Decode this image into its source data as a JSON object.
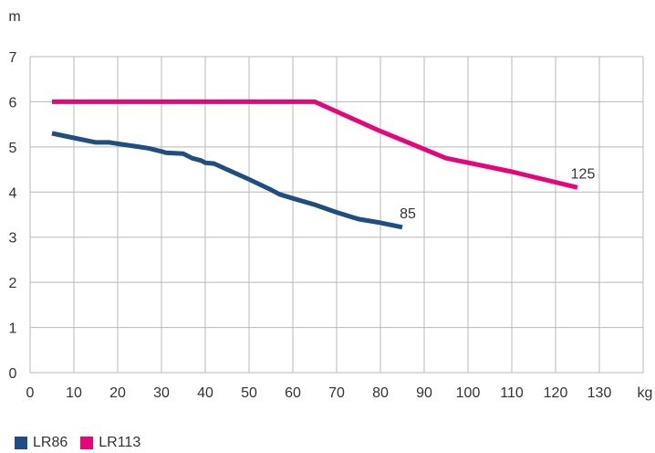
{
  "chart_data": {
    "type": "line",
    "xlabel": "kg",
    "ylabel": "m",
    "xlim": [
      0,
      140
    ],
    "ylim": [
      0,
      7
    ],
    "x_ticks": [
      "0",
      "10",
      "20",
      "30",
      "40",
      "50",
      "60",
      "70",
      "80",
      "90",
      "100",
      "110",
      "120",
      "130"
    ],
    "y_ticks": [
      "0",
      "1",
      "2",
      "3",
      "4",
      "5",
      "6",
      "7"
    ],
    "grid": true,
    "legend_position": "bottom-left",
    "series": [
      {
        "name": "LR86",
        "color": "#1f4e82",
        "end_label": "85",
        "x": [
          5,
          10,
          15,
          18,
          20,
          25,
          27,
          30,
          31,
          33,
          35,
          37,
          39,
          40,
          42,
          45,
          50,
          55,
          57,
          60,
          65,
          70,
          75,
          80,
          85
        ],
        "y": [
          5.3,
          5.2,
          5.1,
          5.1,
          5.07,
          5.0,
          4.97,
          4.9,
          4.87,
          4.86,
          4.85,
          4.75,
          4.7,
          4.65,
          4.63,
          4.5,
          4.28,
          4.05,
          3.95,
          3.86,
          3.72,
          3.55,
          3.4,
          3.32,
          3.22
        ]
      },
      {
        "name": "LR113",
        "color": "#e5067c",
        "end_label": "125",
        "x": [
          5,
          65,
          80,
          95,
          110,
          125
        ],
        "y": [
          6.0,
          6.0,
          5.35,
          4.75,
          4.45,
          4.1
        ]
      }
    ]
  }
}
